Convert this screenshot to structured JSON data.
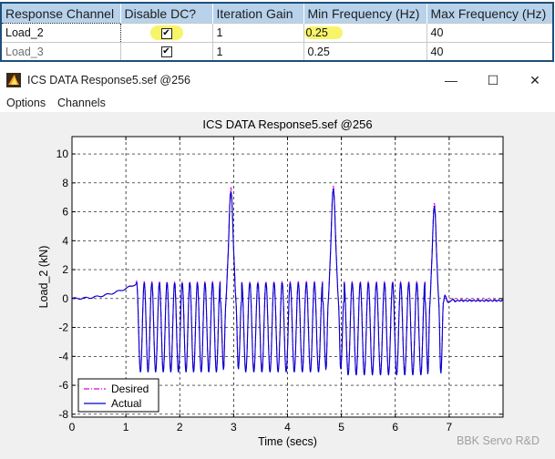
{
  "table": {
    "headers": [
      "Response Channel",
      "Disable DC?",
      "Iteration Gain",
      "Min Frequency (Hz)",
      "Max Frequency (Hz)"
    ],
    "rows": [
      {
        "channel": "Load_2",
        "disable_dc": "✔",
        "gain": "1",
        "min_freq": "0.25",
        "max_freq": "40"
      },
      {
        "channel": "Load_3",
        "disable_dc": "✔",
        "gain": "1",
        "min_freq": "0.25",
        "max_freq": "40"
      }
    ]
  },
  "window": {
    "title": "ICS DATA Response5.sef @256",
    "controls": {
      "minimize": "—",
      "maximize": "☐",
      "close": "✕"
    },
    "menu": [
      "Options",
      "Channels"
    ]
  },
  "chart_data": {
    "type": "line",
    "title": "ICS DATA Response5.sef @256",
    "xlabel": "Time (secs)",
    "ylabel": "Load_2  (kN)",
    "xlim": [
      0,
      8
    ],
    "ylim": [
      -8.2,
      11.2
    ],
    "xticks": [
      0,
      1,
      2,
      3,
      4,
      5,
      6,
      7
    ],
    "yticks": [
      -8,
      -6,
      -4,
      -2,
      0,
      2,
      4,
      6,
      8,
      10
    ],
    "grid": true,
    "legend_position": "bottom-left",
    "series": [
      {
        "name": "Desired",
        "color": "#e000e0",
        "style": "dashdot",
        "segments": [
          {
            "type": "ramp",
            "x0": 0,
            "x1": 1.18,
            "y0": 0,
            "y1": 1.0
          },
          {
            "type": "osc",
            "x0": 1.2,
            "x1": 2.75,
            "cycles": 11,
            "max": 1.2,
            "min": -5.0
          },
          {
            "type": "peak",
            "x0": 2.75,
            "x1": 3.15,
            "min": -5.2,
            "max": 7.7
          },
          {
            "type": "osc",
            "x0": 3.15,
            "x1": 4.65,
            "cycles": 10,
            "max": 1.2,
            "min": -5.0
          },
          {
            "type": "peak",
            "x0": 4.65,
            "x1": 5.05,
            "min": -5.2,
            "max": 7.8
          },
          {
            "type": "osc",
            "x0": 5.05,
            "x1": 6.55,
            "cycles": 10,
            "max": 1.2,
            "min": -5.2
          },
          {
            "type": "peak",
            "x0": 6.55,
            "x1": 6.9,
            "min": -5.5,
            "max": 6.6
          },
          {
            "type": "flat",
            "x0": 6.9,
            "x1": 8.0,
            "y": -0.1
          }
        ]
      },
      {
        "name": "Actual",
        "color": "#0000cc",
        "style": "solid",
        "segments": [
          {
            "type": "ramp",
            "x0": 0,
            "x1": 1.18,
            "y0": 0,
            "y1": 1.0
          },
          {
            "type": "osc",
            "x0": 1.2,
            "x1": 2.75,
            "cycles": 11,
            "max": 1.1,
            "min": -5.1
          },
          {
            "type": "peak",
            "x0": 2.75,
            "x1": 3.15,
            "min": -5.3,
            "max": 7.4
          },
          {
            "type": "osc",
            "x0": 3.15,
            "x1": 4.65,
            "cycles": 10,
            "max": 1.1,
            "min": -5.1
          },
          {
            "type": "peak",
            "x0": 4.65,
            "x1": 5.05,
            "min": -5.3,
            "max": 7.6
          },
          {
            "type": "osc",
            "x0": 5.05,
            "x1": 6.55,
            "cycles": 10,
            "max": 1.1,
            "min": -5.3
          },
          {
            "type": "peak",
            "x0": 6.55,
            "x1": 6.9,
            "min": -5.6,
            "max": 6.4
          },
          {
            "type": "flat",
            "x0": 6.9,
            "x1": 8.0,
            "y": -0.15
          }
        ]
      }
    ]
  },
  "watermark": "BBK Servo R&D"
}
